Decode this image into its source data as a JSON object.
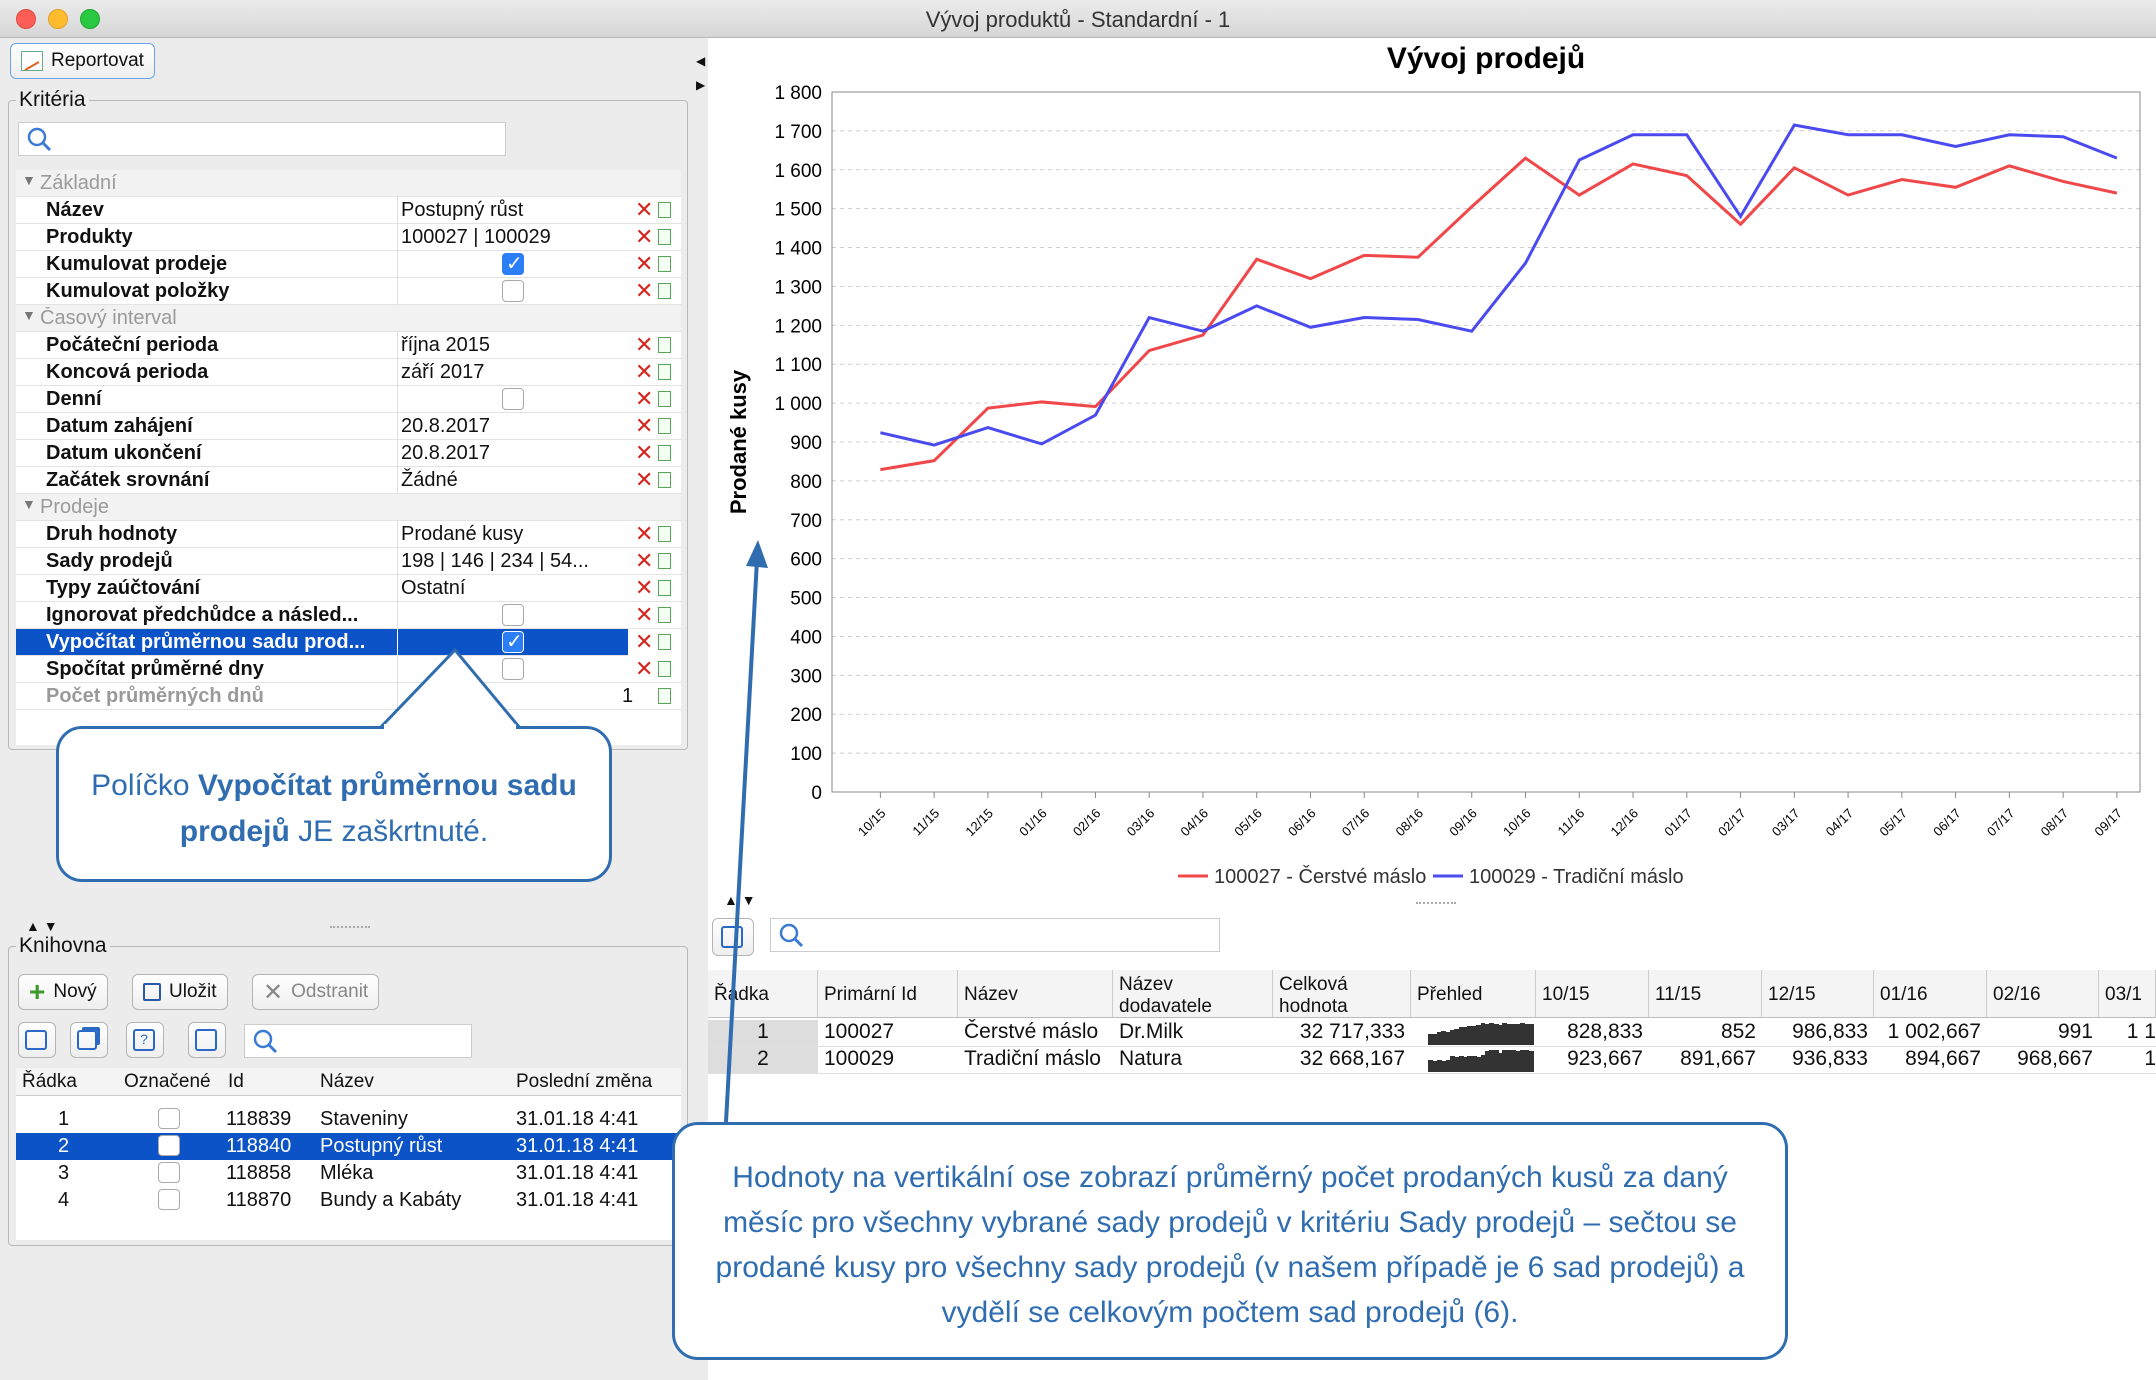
{
  "window": {
    "title": "Vývoj produktů - Standardní - 1"
  },
  "toolbar": {
    "report_label": "Reportovat"
  },
  "criteria": {
    "title": "Kritéria",
    "groups": {
      "basic": "Základní",
      "time": "Časový interval",
      "sales": "Prodeje"
    },
    "rows": [
      {
        "name": "Název",
        "value": "Postupný růst"
      },
      {
        "name": "Produkty",
        "value": "100027 | 100029"
      },
      {
        "name": "Kumulovat prodeje",
        "checked": true
      },
      {
        "name": "Kumulovat položky",
        "checked": false
      },
      {
        "name": "Počáteční perioda",
        "value": "října 2015"
      },
      {
        "name": "Koncová perioda",
        "value": "září 2017"
      },
      {
        "name": "Denní",
        "checked": false
      },
      {
        "name": "Datum zahájení",
        "value": "20.8.2017"
      },
      {
        "name": "Datum ukončení",
        "value": "20.8.2017"
      },
      {
        "name": "Začátek srovnání",
        "value": "Žádné"
      },
      {
        "name": "Druh hodnoty",
        "value": "Prodané kusy"
      },
      {
        "name": "Sady prodejů",
        "value": "198 | 146 | 234 | 54..."
      },
      {
        "name": "Typy zaúčtování",
        "value": "Ostatní"
      },
      {
        "name": "Ignorovat předchůdce a násled...",
        "checked": false
      },
      {
        "name": "Vypočítat průměrnou sadu prod...",
        "checked": true
      },
      {
        "name": "Spočítat průměrné dny",
        "checked": false
      },
      {
        "name": "Počet průměrných dnů",
        "value": "1"
      }
    ]
  },
  "library": {
    "title": "Knihovna",
    "new_label": "Nový",
    "save_label": "Uložit",
    "remove_label": "Odstranit",
    "columns": [
      "Řádka",
      "Označené",
      "Id",
      "Název",
      "Poslední změna"
    ],
    "rows": [
      {
        "row": "1",
        "id": "118839",
        "name": "Staveniny",
        "changed": "31.01.18 4:41"
      },
      {
        "row": "2",
        "id": "118840",
        "name": "Postupný růst",
        "changed": "31.01.18 4:41"
      },
      {
        "row": "3",
        "id": "118858",
        "name": "Mléka",
        "changed": "31.01.18 4:41"
      },
      {
        "row": "4",
        "id": "118870",
        "name": "Bundy a Kabáty",
        "changed": "31.01.18 4:41"
      }
    ]
  },
  "chart_data": {
    "type": "line",
    "title": "Vývoj prodejů",
    "ylabel": "Prodané kusy",
    "ylim": [
      0,
      1800
    ],
    "yticks": [
      "0",
      "100",
      "200",
      "300",
      "400",
      "500",
      "600",
      "700",
      "800",
      "900",
      "1 000",
      "1 100",
      "1 200",
      "1 300",
      "1 400",
      "1 500",
      "1 600",
      "1 700",
      "1 800"
    ],
    "categories": [
      "10/15",
      "11/15",
      "12/15",
      "01/16",
      "02/16",
      "03/16",
      "04/16",
      "05/16",
      "06/16",
      "07/16",
      "08/16",
      "09/16",
      "10/16",
      "11/16",
      "12/16",
      "01/17",
      "02/17",
      "03/17",
      "04/17",
      "05/17",
      "06/17",
      "07/17",
      "08/17",
      "09/17"
    ],
    "series": [
      {
        "name": "100027 - Čerstvé máslo",
        "color": "#f0474a",
        "values": [
          829,
          852,
          987,
          1003,
          991,
          1135,
          1175,
          1370,
          1320,
          1380,
          1375,
          1505,
          1630,
          1535,
          1615,
          1585,
          1460,
          1605,
          1535,
          1575,
          1555,
          1610,
          1570,
          1540
        ]
      },
      {
        "name": "100029 - Tradiční máslo",
        "color": "#4a4af0",
        "values": [
          924,
          892,
          937,
          895,
          969,
          1220,
          1185,
          1250,
          1195,
          1220,
          1215,
          1185,
          1360,
          1625,
          1690,
          1690,
          1480,
          1715,
          1690,
          1690,
          1660,
          1690,
          1685,
          1630
        ]
      }
    ],
    "legend_position": "bottom"
  },
  "table": {
    "columns": [
      "Řádka",
      "Primární Id",
      "Název",
      "Název dodavatele",
      "Celková hodnota",
      "Přehled",
      "10/15",
      "11/15",
      "12/15",
      "01/16",
      "02/16",
      "03/1"
    ],
    "rows": [
      {
        "row": "1",
        "id": "100027",
        "name": "Čerstvé máslo",
        "supplier": "Dr.Milk",
        "total": "32 717,333",
        "m": [
          "828,833",
          "852",
          "986,833",
          "1 002,667",
          "991",
          "1 1"
        ]
      },
      {
        "row": "2",
        "id": "100029",
        "name": "Tradiční máslo",
        "supplier": "Natura",
        "total": "32 668,167",
        "m": [
          "923,667",
          "891,667",
          "936,833",
          "894,667",
          "968,667",
          "1"
        ]
      }
    ]
  },
  "callouts": {
    "checkbox_pre": "Políčko ",
    "checkbox_bold": "Vypočítat průměrnou sadu prodejů",
    "checkbox_post": " JE zaškrtnuté.",
    "axis_text": "Hodnoty na vertikální ose zobrazí průměrný počet prodaných kusů za daný měsíc pro všechny vybrané sady prodejů v kritériu Sady prodejů – sečtou se prodané kusy pro všechny sady prodejů (v našem případě je 6 sad prodejů) a vydělí se celkovým počtem sad prodejů (6)."
  }
}
